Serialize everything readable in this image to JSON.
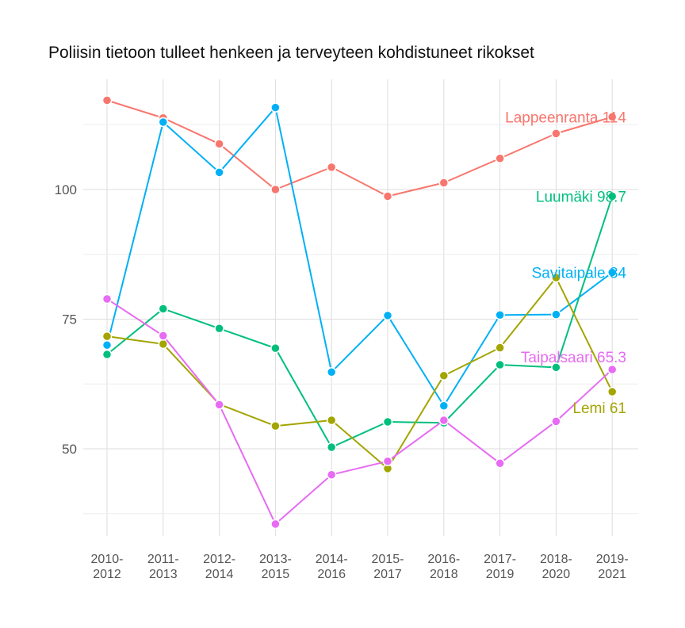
{
  "chart_data": {
    "type": "line",
    "title": "Poliisin tietoon tulleet henkeen ja terveyteen kohdistuneet rikokset",
    "xlabel": "",
    "ylabel": "",
    "categories": [
      "2010-\n2012",
      "2011-\n2013",
      "2012-\n2014",
      "2013-\n2015",
      "2014-\n2016",
      "2015-\n2017",
      "2016-\n2018",
      "2017-\n2019",
      "2018-\n2020",
      "2019-\n2021"
    ],
    "yticks": [
      50,
      75,
      100
    ],
    "ylim": [
      33,
      122
    ],
    "grid": true,
    "series": [
      {
        "name": "Lappeenranta",
        "color": "#F8766D",
        "end_label": "Lappeenranta 114",
        "values": [
          117.2,
          113.8,
          108.8,
          100.0,
          104.3,
          98.7,
          101.3,
          106.0,
          110.8,
          114.0
        ]
      },
      {
        "name": "Savitaipale",
        "color": "#00B0F6",
        "end_label": "Savitaipale 84",
        "values": [
          70.0,
          113.0,
          103.3,
          115.8,
          64.8,
          75.7,
          58.3,
          75.8,
          75.9,
          84.0
        ]
      },
      {
        "name": "Luumäki",
        "color": "#00BF7D",
        "end_label": "Luumäki 98.7",
        "values": [
          68.2,
          77.0,
          73.2,
          69.4,
          50.3,
          55.2,
          55.0,
          66.2,
          65.7,
          98.7
        ]
      },
      {
        "name": "Lemi",
        "color": "#A3A500",
        "end_label": "Lemi 61",
        "values": [
          71.7,
          70.2,
          58.6,
          54.4,
          55.5,
          46.2,
          64.1,
          69.5,
          83.0,
          61.0
        ]
      },
      {
        "name": "Taipalsaari",
        "color": "#E76BF3",
        "end_label": "Taipalsaari 65.3",
        "values": [
          78.9,
          71.8,
          58.5,
          35.5,
          45.0,
          47.6,
          55.5,
          47.2,
          55.3,
          65.3
        ]
      }
    ]
  }
}
